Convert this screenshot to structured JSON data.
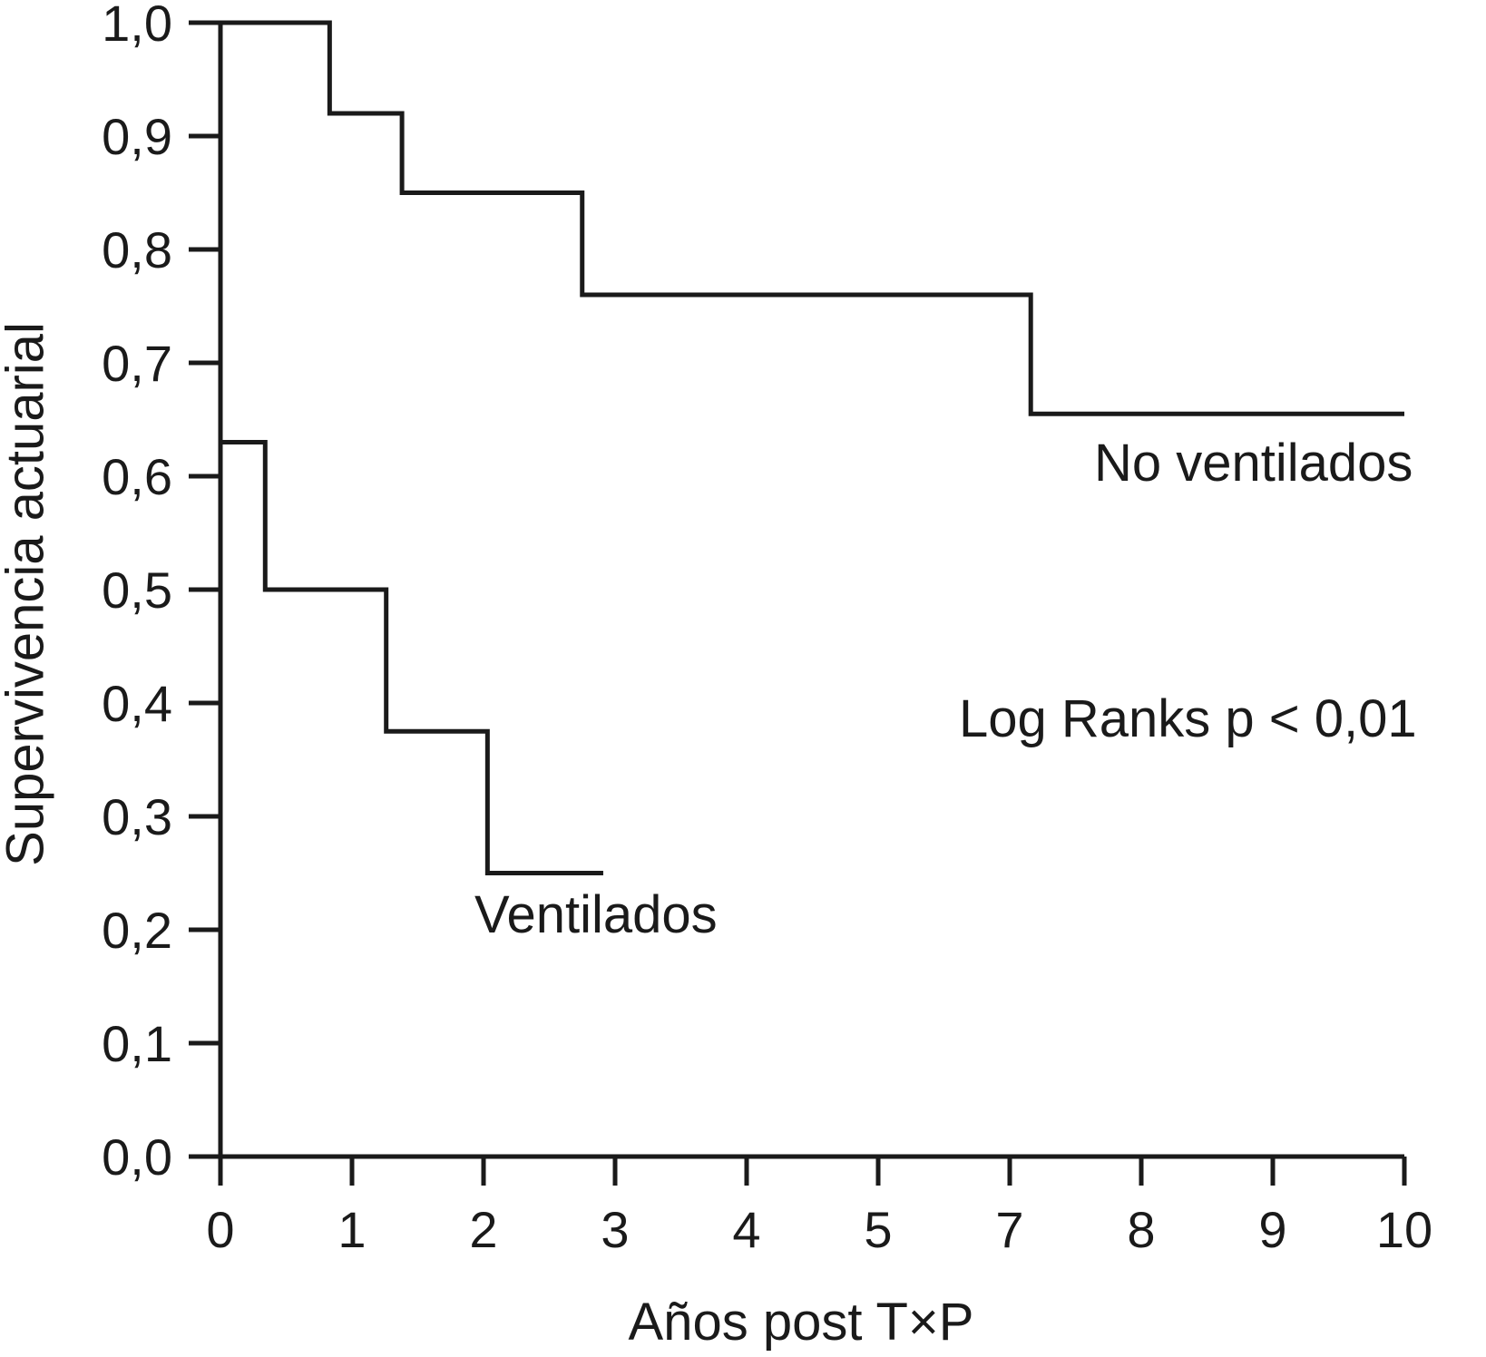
{
  "figure": {
    "background": "#ffffff",
    "ink_color": "#1a1a1a"
  },
  "chart_data": {
    "type": "line",
    "variant": "kaplan_meier_step",
    "title": "",
    "xlabel": "Años post T×P",
    "ylabel": "Supervivencia actuarial",
    "x_tick_labels": [
      "0",
      "1",
      "2",
      "3",
      "4",
      "5",
      "7",
      "8",
      "9",
      "10"
    ],
    "y_tick_labels": [
      "0,0",
      "0,1",
      "0,2",
      "0,3",
      "0,4",
      "0,5",
      "0,6",
      "0,7",
      "0,8",
      "0,9",
      "1,0"
    ],
    "x_axis": {
      "tick_count": 10,
      "x_value_system": "tick-position index 0-9; ticks are evenly spaced and labeled 0,1,2,3,4,5,7,8,9,10 (label 6 skipped in source figure)",
      "range_positions": [
        0,
        9
      ]
    },
    "ylim": [
      0.0,
      1.0
    ],
    "grid": false,
    "legend_position": "inline text labels beside curves",
    "series": [
      {
        "name": "No ventilados",
        "start": [
          0,
          1.0
        ],
        "drops": [
          [
            0.83,
            0.92
          ],
          [
            1.38,
            0.85
          ],
          [
            2.75,
            0.76
          ],
          [
            6.16,
            0.655
          ]
        ],
        "end_x": 9.0
      },
      {
        "name": "Ventilados",
        "start": [
          0,
          0.63
        ],
        "drops": [
          [
            0.34,
            0.5
          ],
          [
            1.26,
            0.375
          ],
          [
            2.03,
            0.25
          ]
        ],
        "end_x": 2.91
      }
    ],
    "annotations": [
      {
        "id": "no_ventilados_label",
        "text": "No ventilados"
      },
      {
        "id": "log_rank_text",
        "text": "Log Ranks p < 0,01"
      },
      {
        "id": "ventilados_label",
        "text": "Ventilados"
      }
    ]
  }
}
